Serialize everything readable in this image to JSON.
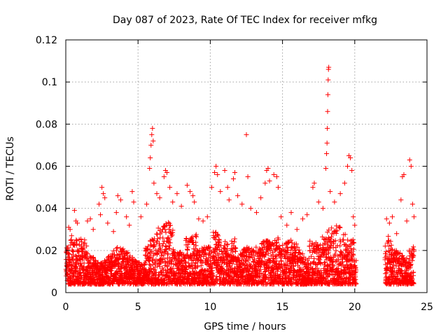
{
  "chart_data": {
    "type": "scatter",
    "title": "Day 087 of 2023, Rate Of TEC Index for receiver mfkg",
    "xlabel": "GPS time / hours",
    "ylabel": "ROTI / TECUs",
    "xlim": [
      0,
      25
    ],
    "ylim": [
      0,
      0.12
    ],
    "x_ticks": [
      0,
      5,
      10,
      15,
      20,
      25
    ],
    "x_tick_labels": [
      "0",
      "5",
      "10",
      "15",
      "20",
      "25"
    ],
    "y_ticks": [
      0,
      0.02,
      0.04,
      0.06,
      0.08,
      0.1,
      0.12
    ],
    "y_tick_labels": [
      "0",
      "0.02",
      "0.04",
      "0.06",
      "0.08",
      "0.1",
      "0.12"
    ],
    "grid": true,
    "marker": "+",
    "color": "#ff0000",
    "data_gap_hours": [
      20.1,
      22.1
    ],
    "series": [
      {
        "points": [
          [
            0.1,
            0.009
          ],
          [
            0.2,
            0.031
          ],
          [
            0.3,
            0.03
          ],
          [
            0.4,
            0.027
          ],
          [
            0.6,
            0.039
          ],
          [
            0.7,
            0.034
          ],
          [
            0.8,
            0.033
          ],
          [
            1.3,
            0.025
          ],
          [
            1.5,
            0.034
          ],
          [
            1.7,
            0.035
          ],
          [
            1.9,
            0.03
          ],
          [
            2.3,
            0.042
          ],
          [
            2.4,
            0.037
          ],
          [
            2.5,
            0.05
          ],
          [
            2.6,
            0.047
          ],
          [
            2.7,
            0.045
          ],
          [
            2.9,
            0.033
          ],
          [
            3.3,
            0.029
          ],
          [
            3.5,
            0.038
          ],
          [
            3.6,
            0.046
          ],
          [
            3.8,
            0.044
          ],
          [
            4.2,
            0.036
          ],
          [
            4.4,
            0.032
          ],
          [
            4.6,
            0.048
          ],
          [
            4.7,
            0.043
          ],
          [
            5.2,
            0.036
          ],
          [
            5.6,
            0.042
          ],
          [
            5.8,
            0.059
          ],
          [
            5.85,
            0.064
          ],
          [
            5.9,
            0.07
          ],
          [
            5.95,
            0.075
          ],
          [
            6.0,
            0.078
          ],
          [
            6.05,
            0.072
          ],
          [
            6.1,
            0.052
          ],
          [
            6.3,
            0.047
          ],
          [
            6.5,
            0.045
          ],
          [
            6.8,
            0.055
          ],
          [
            6.9,
            0.058
          ],
          [
            7.0,
            0.057
          ],
          [
            7.2,
            0.05
          ],
          [
            7.4,
            0.043
          ],
          [
            7.7,
            0.047
          ],
          [
            8.0,
            0.041
          ],
          [
            8.4,
            0.051
          ],
          [
            8.6,
            0.048
          ],
          [
            8.8,
            0.046
          ],
          [
            8.9,
            0.043
          ],
          [
            9.2,
            0.035
          ],
          [
            9.5,
            0.034
          ],
          [
            9.8,
            0.036
          ],
          [
            10.1,
            0.05
          ],
          [
            10.3,
            0.057
          ],
          [
            10.4,
            0.06
          ],
          [
            10.5,
            0.056
          ],
          [
            10.7,
            0.048
          ],
          [
            11.0,
            0.058
          ],
          [
            11.2,
            0.05
          ],
          [
            11.3,
            0.044
          ],
          [
            11.6,
            0.054
          ],
          [
            11.7,
            0.057
          ],
          [
            11.9,
            0.046
          ],
          [
            12.2,
            0.042
          ],
          [
            12.5,
            0.075
          ],
          [
            12.6,
            0.055
          ],
          [
            12.8,
            0.04
          ],
          [
            13.2,
            0.038
          ],
          [
            13.5,
            0.045
          ],
          [
            13.8,
            0.052
          ],
          [
            13.9,
            0.058
          ],
          [
            14.0,
            0.059
          ],
          [
            14.1,
            0.053
          ],
          [
            14.4,
            0.056
          ],
          [
            14.6,
            0.055
          ],
          [
            14.7,
            0.05
          ],
          [
            14.9,
            0.036
          ],
          [
            15.3,
            0.032
          ],
          [
            15.6,
            0.038
          ],
          [
            16.0,
            0.03
          ],
          [
            16.4,
            0.035
          ],
          [
            16.7,
            0.037
          ],
          [
            17.1,
            0.05
          ],
          [
            17.2,
            0.052
          ],
          [
            17.5,
            0.043
          ],
          [
            17.8,
            0.04
          ],
          [
            18.0,
            0.059
          ],
          [
            18.05,
            0.066
          ],
          [
            18.08,
            0.071
          ],
          [
            18.1,
            0.078
          ],
          [
            18.12,
            0.086
          ],
          [
            18.14,
            0.094
          ],
          [
            18.16,
            0.101
          ],
          [
            18.18,
            0.106
          ],
          [
            18.2,
            0.107
          ],
          [
            18.3,
            0.048
          ],
          [
            18.6,
            0.043
          ],
          [
            19.0,
            0.047
          ],
          [
            19.3,
            0.052
          ],
          [
            19.5,
            0.06
          ],
          [
            19.6,
            0.065
          ],
          [
            19.7,
            0.064
          ],
          [
            19.8,
            0.058
          ],
          [
            19.9,
            0.036
          ],
          [
            20.0,
            0.032
          ],
          [
            22.2,
            0.035
          ],
          [
            22.4,
            0.033
          ],
          [
            22.6,
            0.036
          ],
          [
            22.9,
            0.028
          ],
          [
            23.2,
            0.044
          ],
          [
            23.3,
            0.055
          ],
          [
            23.4,
            0.056
          ],
          [
            23.6,
            0.034
          ],
          [
            23.8,
            0.063
          ],
          [
            23.9,
            0.06
          ],
          [
            24.0,
            0.042
          ],
          [
            24.1,
            0.036
          ]
        ]
      }
    ]
  }
}
